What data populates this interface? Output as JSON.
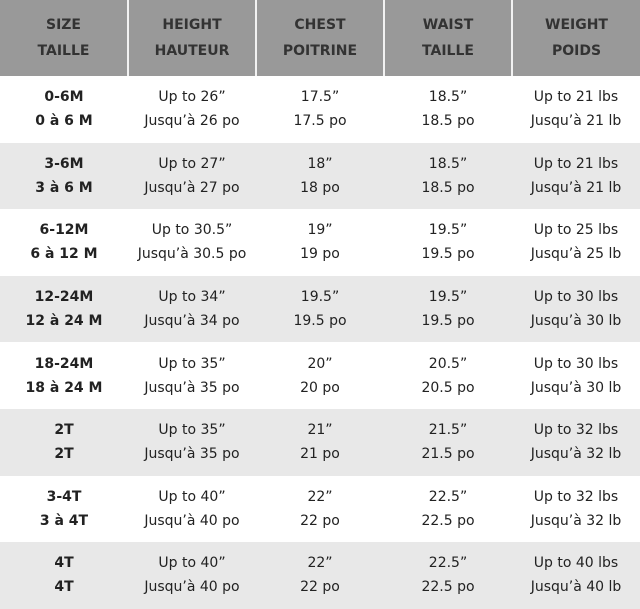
{
  "headers": [
    {
      "en": "SIZE",
      "fr": "TAILLE"
    },
    {
      "en": "HEIGHT",
      "fr": "HAUTEUR"
    },
    {
      "en": "CHEST",
      "fr": "POITRINE"
    },
    {
      "en": "WAIST",
      "fr": "TAILLE"
    },
    {
      "en": "WEIGHT",
      "fr": "POIDS"
    }
  ],
  "rows": [
    [
      {
        "en": "0-6M",
        "fr": "0 à 6 M"
      },
      {
        "en": "Up to 26”",
        "fr": "Jusqu’à 26 po"
      },
      {
        "en": "17.5”",
        "fr": "17.5 po"
      },
      {
        "en": "18.5”",
        "fr": "18.5 po"
      },
      {
        "en": "Up to 21 lbs",
        "fr": "Jusqu’à 21 lb"
      }
    ],
    [
      {
        "en": "3-6M",
        "fr": "3 à 6 M"
      },
      {
        "en": "Up to 27”",
        "fr": "Jusqu’à 27 po"
      },
      {
        "en": "18”",
        "fr": "18 po"
      },
      {
        "en": "18.5”",
        "fr": "18.5 po"
      },
      {
        "en": "Up to 21 lbs",
        "fr": "Jusqu’à 21 lb"
      }
    ],
    [
      {
        "en": "6-12M",
        "fr": "6 à 12 M"
      },
      {
        "en": "Up to 30.5”",
        "fr": "Jusqu’à 30.5 po"
      },
      {
        "en": "19”",
        "fr": "19 po"
      },
      {
        "en": "19.5”",
        "fr": "19.5 po"
      },
      {
        "en": "Up to 25 lbs",
        "fr": "Jusqu’à 25 lb"
      }
    ],
    [
      {
        "en": "12-24M",
        "fr": "12 à 24 M"
      },
      {
        "en": "Up to 34”",
        "fr": "Jusqu’à 34 po"
      },
      {
        "en": "19.5”",
        "fr": "19.5 po"
      },
      {
        "en": "19.5”",
        "fr": "19.5 po"
      },
      {
        "en": "Up to 30 lbs",
        "fr": "Jusqu’à 30 lb"
      }
    ],
    [
      {
        "en": "18-24M",
        "fr": "18 à 24 M"
      },
      {
        "en": "Up to 35”",
        "fr": "Jusqu’à 35 po"
      },
      {
        "en": "20”",
        "fr": "20 po"
      },
      {
        "en": "20.5”",
        "fr": "20.5 po"
      },
      {
        "en": "Up to 30 lbs",
        "fr": "Jusqu’à 30 lb"
      }
    ],
    [
      {
        "en": "2T",
        "fr": "2T"
      },
      {
        "en": "Up to 35”",
        "fr": "Jusqu’à 35 po"
      },
      {
        "en": "21”",
        "fr": "21 po"
      },
      {
        "en": "21.5”",
        "fr": "21.5 po"
      },
      {
        "en": "Up to 32 lbs",
        "fr": "Jusqu’à 32 lb"
      }
    ],
    [
      {
        "en": "3-4T",
        "fr": "3 à 4T"
      },
      {
        "en": "Up to 40”",
        "fr": "Jusqu’à 40 po"
      },
      {
        "en": "22”",
        "fr": "22 po"
      },
      {
        "en": "22.5”",
        "fr": "22.5 po"
      },
      {
        "en": "Up to 32 lbs",
        "fr": "Jusqu’à 32 lb"
      }
    ],
    [
      {
        "en": "4T",
        "fr": "4T"
      },
      {
        "en": "Up to 40”",
        "fr": "Jusqu’à 40 po"
      },
      {
        "en": "22”",
        "fr": "22 po"
      },
      {
        "en": "22.5”",
        "fr": "22.5 po"
      },
      {
        "en": "Up to 40 lbs",
        "fr": "Jusqu’à 40 lb"
      }
    ]
  ]
}
